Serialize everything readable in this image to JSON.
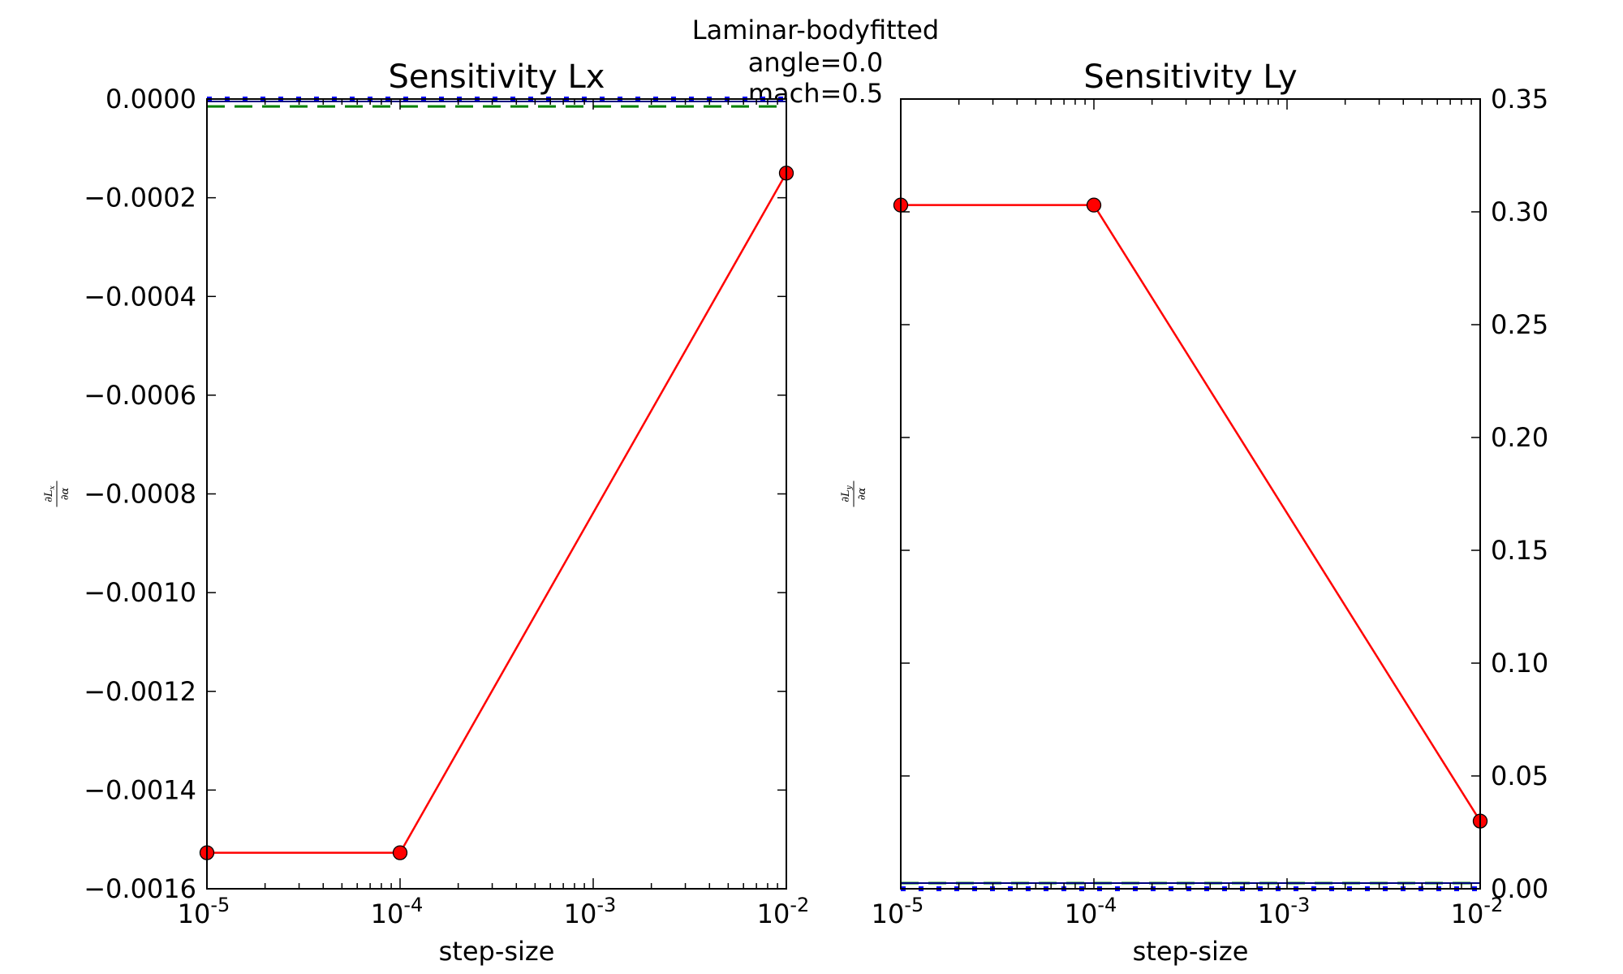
{
  "suptitle": [
    "Laminar-bodyfitted",
    "angle=0.0",
    "mach=0.5"
  ],
  "chart_data": [
    {
      "type": "line",
      "title": "Sensitivity Lx",
      "xlabel": "step-size",
      "ylabel": "∂Lx/∂α",
      "ylabel_num": "∂L",
      "ylabel_sub": "x",
      "ylabel_den": "∂α",
      "xscale": "log",
      "xlim": [
        1e-05,
        0.01
      ],
      "ylim": [
        -0.0016,
        0.0
      ],
      "y_axis_side": "left",
      "grid": false,
      "x_ticks": [
        {
          "value": 1e-05,
          "base": "10",
          "exp": "-5"
        },
        {
          "value": 0.0001,
          "base": "10",
          "exp": "-4"
        },
        {
          "value": 0.001,
          "base": "10",
          "exp": "-3"
        },
        {
          "value": 0.01,
          "base": "10",
          "exp": "-2"
        }
      ],
      "y_ticks": [
        {
          "value": 0.0,
          "label": "0.0000"
        },
        {
          "value": -0.0002,
          "label": "−0.0002"
        },
        {
          "value": -0.0004,
          "label": "−0.0004"
        },
        {
          "value": -0.0006,
          "label": "−0.0006"
        },
        {
          "value": -0.0008,
          "label": "−0.0008"
        },
        {
          "value": -0.001,
          "label": "−0.0010"
        },
        {
          "value": -0.0012,
          "label": "−0.0012"
        },
        {
          "value": -0.0014,
          "label": "−0.0014"
        },
        {
          "value": -0.0016,
          "label": "−0.0016"
        }
      ],
      "series": [
        {
          "style": "line-markers",
          "color": "#ff0000",
          "x": [
            1e-05,
            0.0001,
            0.01
          ],
          "y": [
            -0.001527,
            -0.001527,
            -0.00015
          ]
        },
        {
          "style": "dashed",
          "color": "#008000",
          "y_const": -1.5e-05
        },
        {
          "style": "dotted",
          "color": "#0000ff",
          "y_const": 0.0
        },
        {
          "style": "solid",
          "color": "#000080",
          "y_const": -5e-06
        }
      ]
    },
    {
      "type": "line",
      "title": "Sensitivity Ly",
      "xlabel": "step-size",
      "ylabel": "∂Ly/∂α",
      "ylabel_num": "∂L",
      "ylabel_sub": "y",
      "ylabel_den": "∂α",
      "xscale": "log",
      "xlim": [
        1e-05,
        0.01
      ],
      "ylim": [
        0.0,
        0.35
      ],
      "y_axis_side": "right",
      "grid": false,
      "x_ticks": [
        {
          "value": 1e-05,
          "base": "10",
          "exp": "-5"
        },
        {
          "value": 0.0001,
          "base": "10",
          "exp": "-4"
        },
        {
          "value": 0.001,
          "base": "10",
          "exp": "-3"
        },
        {
          "value": 0.01,
          "base": "10",
          "exp": "-2"
        }
      ],
      "y_ticks": [
        {
          "value": 0.35,
          "label": "0.35"
        },
        {
          "value": 0.3,
          "label": "0.30"
        },
        {
          "value": 0.25,
          "label": "0.25"
        },
        {
          "value": 0.2,
          "label": "0.20"
        },
        {
          "value": 0.15,
          "label": "0.15"
        },
        {
          "value": 0.1,
          "label": "0.10"
        },
        {
          "value": 0.05,
          "label": "0.05"
        },
        {
          "value": 0.0,
          "label": "0.00"
        }
      ],
      "series": [
        {
          "style": "line-markers",
          "color": "#ff0000",
          "x": [
            1e-05,
            0.0001,
            0.01
          ],
          "y": [
            0.303,
            0.303,
            0.03
          ]
        },
        {
          "style": "dashed",
          "color": "#008000",
          "y_const": 0.0025
        },
        {
          "style": "dotted",
          "color": "#0000ff",
          "y_const": 0.0
        },
        {
          "style": "solid",
          "color": "#000080",
          "y_const": 0.0025
        }
      ]
    }
  ]
}
